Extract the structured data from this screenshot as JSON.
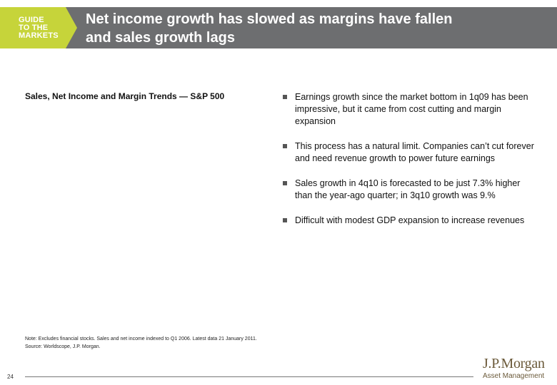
{
  "header": {
    "logo_lines": [
      "GUIDE",
      "TO THE",
      "MARKETS"
    ],
    "title_lines": [
      "Net income growth has slowed as margins have fallen",
      "and sales growth lags"
    ]
  },
  "chart": {
    "title": "Sales, Net Income and Margin Trends — S&P 500"
  },
  "bullets": [
    "Earnings growth since the market bottom in 1q09 has been impressive, but it came from cost cutting and margin expansion",
    "This process has a natural limit. Companies can’t cut forever and need revenue growth to power future earnings",
    "Sales growth in 4q10 is forecasted to be just 7.3% higher than the year-ago quarter; in 3q10 growth was 9.%",
    "Difficult with modest GDP expansion to increase revenues"
  ],
  "note": "Note: Excludes financial stocks. Sales and net income indexed to Q1 2006. Latest data 21 January 2011. Source: Worldscope, J.P. Morgan.",
  "footer": {
    "page_number": "24",
    "brand_name": "J.P.Morgan",
    "brand_sub": "Asset Management"
  },
  "colors": {
    "header_band": "#6d6e70",
    "logo_green": "#c6d43a",
    "brand_gold": "#6b5a3a"
  }
}
